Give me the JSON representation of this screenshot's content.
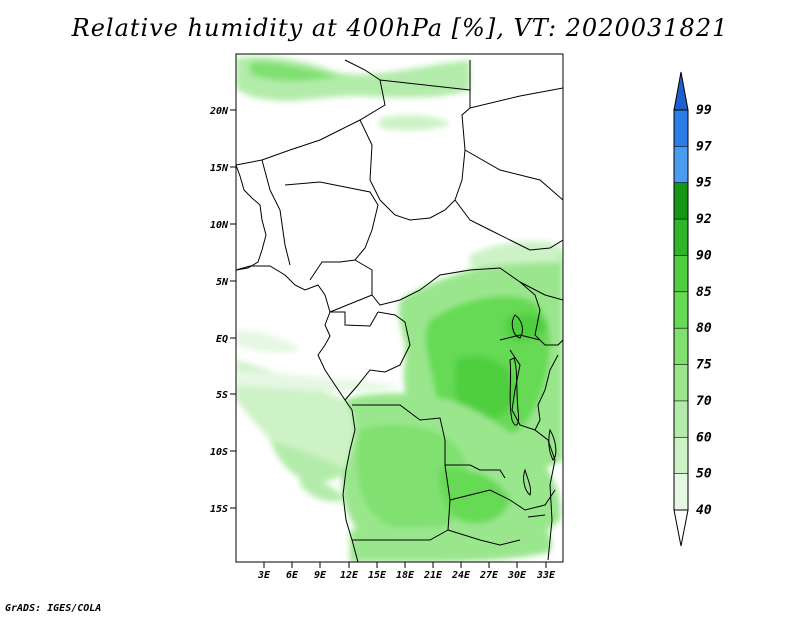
{
  "title": "Relative humidity at 400hPa [%], VT: 2020031821",
  "footer": "GrADS: IGES/COLA",
  "lat_labels": [
    "20N",
    "15N",
    "10N",
    "5N",
    "EQ",
    "5S",
    "10S",
    "15S"
  ],
  "lon_labels": [
    "3E",
    "6E",
    "9E",
    "12E",
    "15E",
    "18E",
    "21E",
    "24E",
    "27E",
    "30E",
    "33E"
  ],
  "colorbar": {
    "levels": [
      "40",
      "50",
      "60",
      "70",
      "75",
      "80",
      "85",
      "90",
      "92",
      "95",
      "97",
      "99"
    ],
    "colors": [
      "#ffffff",
      "#e6f8e3",
      "#cdf2c6",
      "#b3ecaa",
      "#9ae68d",
      "#80e070",
      "#66d955",
      "#4fcf40",
      "#2fb52a",
      "#169615",
      "#4a9cf0",
      "#2c7ee6",
      "#1e5fcc"
    ]
  }
}
